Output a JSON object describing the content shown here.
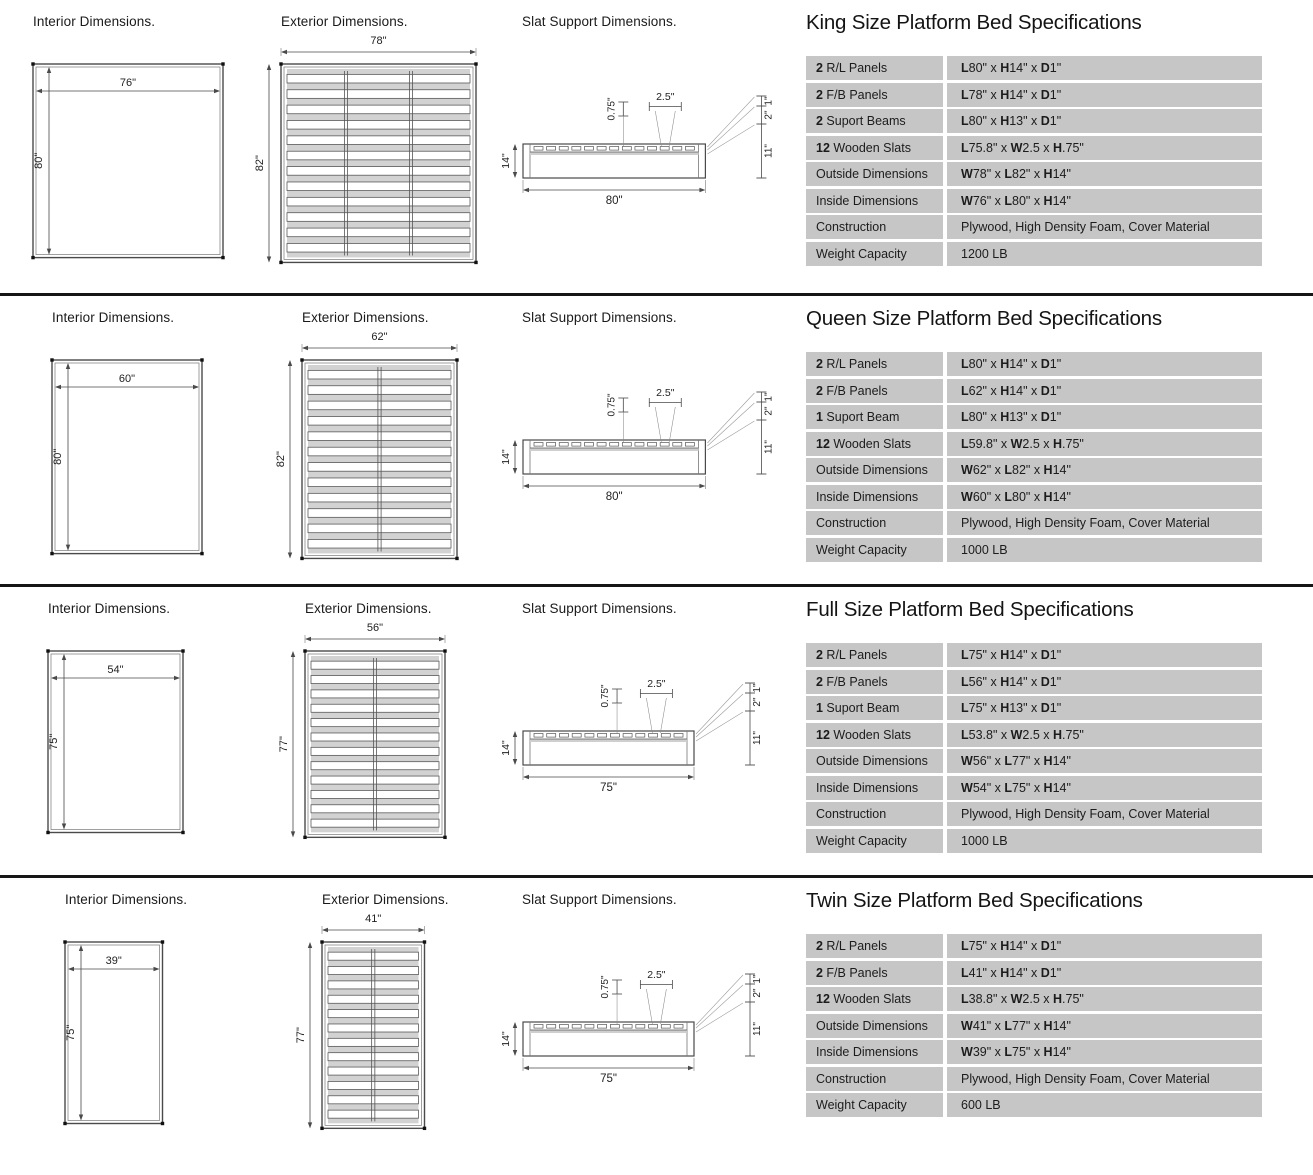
{
  "colors": {
    "table_row_bg": "#c6c6c6",
    "separator": "#161616",
    "diagram_line": "#4a4a4a"
  },
  "sections": [
    {
      "id": "king",
      "title": "King Size Platform Bed Specifications",
      "labels": {
        "interior": "Interior Dimensions.",
        "exterior": "Exterior Dimensions.",
        "slat": "Slat Support Dimensions."
      },
      "diagrams": {
        "interior": {
          "width_label": "76\"",
          "height_label": "80\""
        },
        "exterior": {
          "width_label": "78\"",
          "height_label": "82\"",
          "slat_count": 12,
          "beam_lines": 2
        },
        "slat_support": {
          "length_label": "80\"",
          "height_label": "14\"",
          "slat_thickness_label": "0.75\"",
          "slat_width_label": "2.5\"",
          "right_labels": [
            "1\"",
            "2\"",
            "11\""
          ]
        }
      },
      "table": {
        "rows": [
          {
            "label": "2 R/L Panels",
            "value": "L80\" x H14\" x D1\""
          },
          {
            "label": "2 F/B Panels",
            "value": "L78\" x H14\" x D1\""
          },
          {
            "label": "2 Suport Beams",
            "value": "L80\" x H13\" x D1\""
          },
          {
            "label": "12 Wooden Slats",
            "value": "L75.8\" x W2.5 x H.75\""
          },
          {
            "label": "Outside Dimensions",
            "value": "W78\" x L82\" x H14\""
          },
          {
            "label": "Inside Dimensions",
            "value": "W76\" x L80\" x H14\""
          },
          {
            "label": "Construction",
            "value": "Plywood, High Density Foam, Cover Material"
          },
          {
            "label": "Weight Capacity",
            "value": "1200 LB"
          }
        ]
      }
    },
    {
      "id": "queen",
      "title": "Queen Size Platform Bed Specifications",
      "labels": {
        "interior": "Interior Dimensions.",
        "exterior": "Exterior Dimensions.",
        "slat": "Slat Support Dimensions."
      },
      "diagrams": {
        "interior": {
          "width_label": "60\"",
          "height_label": "80\""
        },
        "exterior": {
          "width_label": "62\"",
          "height_label": "82\"",
          "slat_count": 12,
          "beam_lines": 1
        },
        "slat_support": {
          "length_label": "80\"",
          "height_label": "14\"",
          "slat_thickness_label": "0.75\"",
          "slat_width_label": "2.5\"",
          "right_labels": [
            "1\"",
            "2\"",
            "11\""
          ]
        }
      },
      "table": {
        "rows": [
          {
            "label": "2 R/L Panels",
            "value": "L80\" x H14\" x D1\""
          },
          {
            "label": "2 F/B Panels",
            "value": "L62\" x H14\" x D1\""
          },
          {
            "label": "1 Suport Beam",
            "value": "L80\" x H13\" x D1\""
          },
          {
            "label": "12 Wooden Slats",
            "value": "L59.8\" x W2.5 x H.75\""
          },
          {
            "label": "Outside Dimensions",
            "value": "W62\" x L82\" x H14\""
          },
          {
            "label": "Inside Dimensions",
            "value": "W60\" x L80\" x H14\""
          },
          {
            "label": "Construction",
            "value": "Plywood, High Density Foam, Cover Material"
          },
          {
            "label": "Weight Capacity",
            "value": "1000 LB"
          }
        ]
      }
    },
    {
      "id": "full",
      "title": "Full Size Platform Bed Specifications",
      "labels": {
        "interior": "Interior Dimensions.",
        "exterior": "Exterior Dimensions.",
        "slat": "Slat Support Dimensions."
      },
      "diagrams": {
        "interior": {
          "width_label": "54\"",
          "height_label": "75\""
        },
        "exterior": {
          "width_label": "56\"",
          "height_label": "77\"",
          "slat_count": 12,
          "beam_lines": 1
        },
        "slat_support": {
          "length_label": "75\"",
          "height_label": "14\"",
          "slat_thickness_label": "0.75\"",
          "slat_width_label": "2.5\"",
          "right_labels": [
            "1\"",
            "2\"",
            "11\""
          ]
        }
      },
      "table": {
        "rows": [
          {
            "label": "2 R/L Panels",
            "value": "L75\" x H14\" x D1\""
          },
          {
            "label": "2 F/B Panels",
            "value": "L56\" x H14\" x D1\""
          },
          {
            "label": "1 Suport Beam",
            "value": "L75\" x H13\" x D1\""
          },
          {
            "label": "12 Wooden Slats",
            "value": "L53.8\" x W2.5 x H.75\""
          },
          {
            "label": "Outside Dimensions",
            "value": "W56\" x L77\" x H14\""
          },
          {
            "label": "Inside Dimensions",
            "value": "W54\" x L75\" x H14\""
          },
          {
            "label": "Construction",
            "value": "Plywood, High Density Foam, Cover Material"
          },
          {
            "label": "Weight Capacity",
            "value": "1000 LB"
          }
        ]
      }
    },
    {
      "id": "twin",
      "title": "Twin Size Platform Bed Specifications",
      "labels": {
        "interior": "Interior Dimensions.",
        "exterior": "Exterior Dimensions.",
        "slat": "Slat Support Dimensions."
      },
      "diagrams": {
        "interior": {
          "width_label": "39\"",
          "height_label": "75\""
        },
        "exterior": {
          "width_label": "41\"",
          "height_label": "77\"",
          "slat_count": 12,
          "beam_lines": 1
        },
        "slat_support": {
          "length_label": "75\"",
          "height_label": "14\"",
          "slat_thickness_label": "0.75\"",
          "slat_width_label": "2.5\"",
          "right_labels": [
            "1\"",
            "2\"",
            "11\""
          ]
        }
      },
      "table": {
        "rows": [
          {
            "label": "2 R/L Panels",
            "value": "L75\" x H14\" x D1\""
          },
          {
            "label": "2 F/B Panels",
            "value": "L41\" x H14\" x D1\""
          },
          {
            "label": "12 Wooden Slats",
            "value": "L38.8\" x W2.5 x H.75\""
          },
          {
            "label": "Outside Dimensions",
            "value": "W41\" x L77\" x H14\""
          },
          {
            "label": "Inside Dimensions",
            "value": "W39\" x L75\" x H14\""
          },
          {
            "label": "Construction",
            "value": "Plywood, High Density Foam, Cover Material"
          },
          {
            "label": "Weight Capacity",
            "value": "600 LB"
          }
        ]
      }
    }
  ]
}
